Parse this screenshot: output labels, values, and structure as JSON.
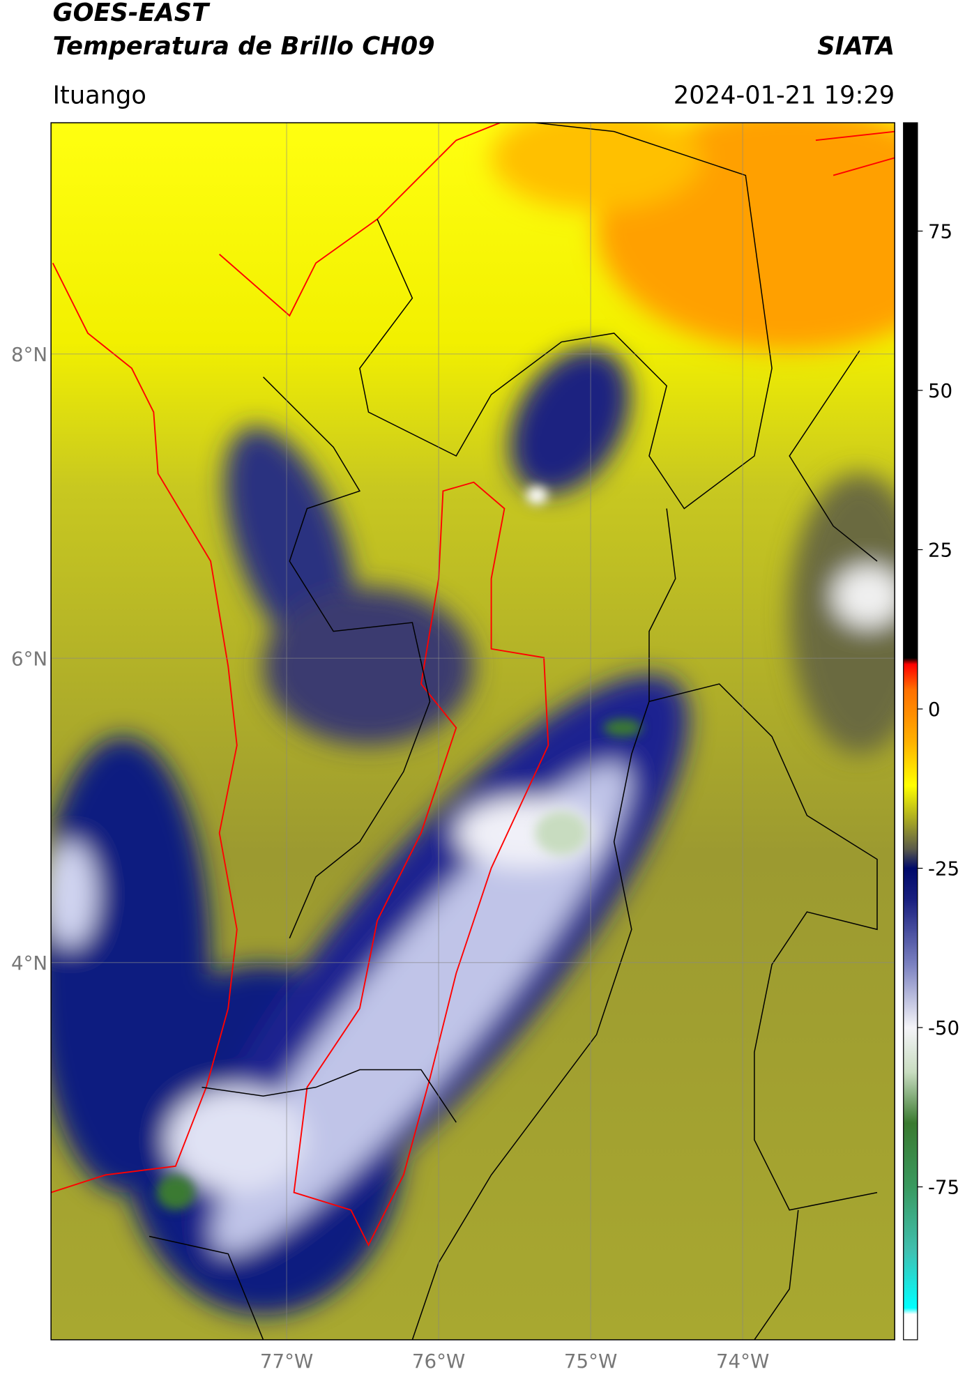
{
  "header": {
    "title": "GOES-EAST",
    "subtitle": "Temperatura de Brillo CH09",
    "org": "SIATA",
    "location": "Ituango",
    "datetime": "2024-01-21 19:29"
  },
  "map": {
    "lonlim": [
      -78.55,
      -73.0
    ],
    "latlim": [
      1.52,
      9.52
    ],
    "lat_ticks": [
      {
        "value": 8,
        "label": "8°N"
      },
      {
        "value": 6,
        "label": "6°N"
      },
      {
        "value": 4,
        "label": "4°N"
      }
    ],
    "lon_ticks": [
      {
        "value": -77,
        "label": "77°W"
      },
      {
        "value": -76,
        "label": "76°W"
      },
      {
        "value": -75,
        "label": "75°W"
      },
      {
        "value": -74,
        "label": "74°W"
      }
    ]
  },
  "colorbar": {
    "lim": [
      -99,
      92
    ],
    "ticks": [
      75,
      50,
      25,
      0,
      -25,
      -50,
      -75
    ],
    "colormap": [
      {
        "value": -99,
        "color": "#ffffff"
      },
      {
        "value": -95,
        "color": "#ffffff"
      },
      {
        "value": -94,
        "color": "#00ffff"
      },
      {
        "value": -85,
        "color": "#40c0b0"
      },
      {
        "value": -75,
        "color": "#3a9a60"
      },
      {
        "value": -65,
        "color": "#3a7a30"
      },
      {
        "value": -57,
        "color": "#c8dcc0"
      },
      {
        "value": -50,
        "color": "#f4f4f8"
      },
      {
        "value": -40,
        "color": "#7a80c0"
      },
      {
        "value": -30,
        "color": "#1a2080"
      },
      {
        "value": -25,
        "color": "#000a6a"
      },
      {
        "value": -22,
        "color": "#5a5a4a"
      },
      {
        "value": -17,
        "color": "#b0b020"
      },
      {
        "value": -12,
        "color": "#ffff00"
      },
      {
        "value": -5,
        "color": "#ffb000"
      },
      {
        "value": 3,
        "color": "#ff7000"
      },
      {
        "value": 7,
        "color": "#ff0000"
      },
      {
        "value": 8,
        "color": "#000000"
      },
      {
        "value": 92,
        "color": "#000000"
      }
    ]
  }
}
